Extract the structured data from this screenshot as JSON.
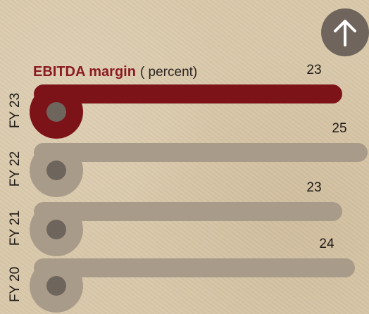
{
  "chart_data": {
    "type": "bar",
    "orientation": "horizontal",
    "title": "EBITDA margin",
    "subtitle": "( percent)",
    "categories": [
      "FY 23",
      "FY 22",
      "FY 21",
      "FY 20"
    ],
    "values": [
      23,
      25,
      23,
      24
    ],
    "colors": [
      "#7b1319",
      "#a99b89",
      "#a99b89",
      "#a99b89"
    ],
    "title_color": "#8a1a20",
    "xlim": [
      0,
      25
    ]
  }
}
